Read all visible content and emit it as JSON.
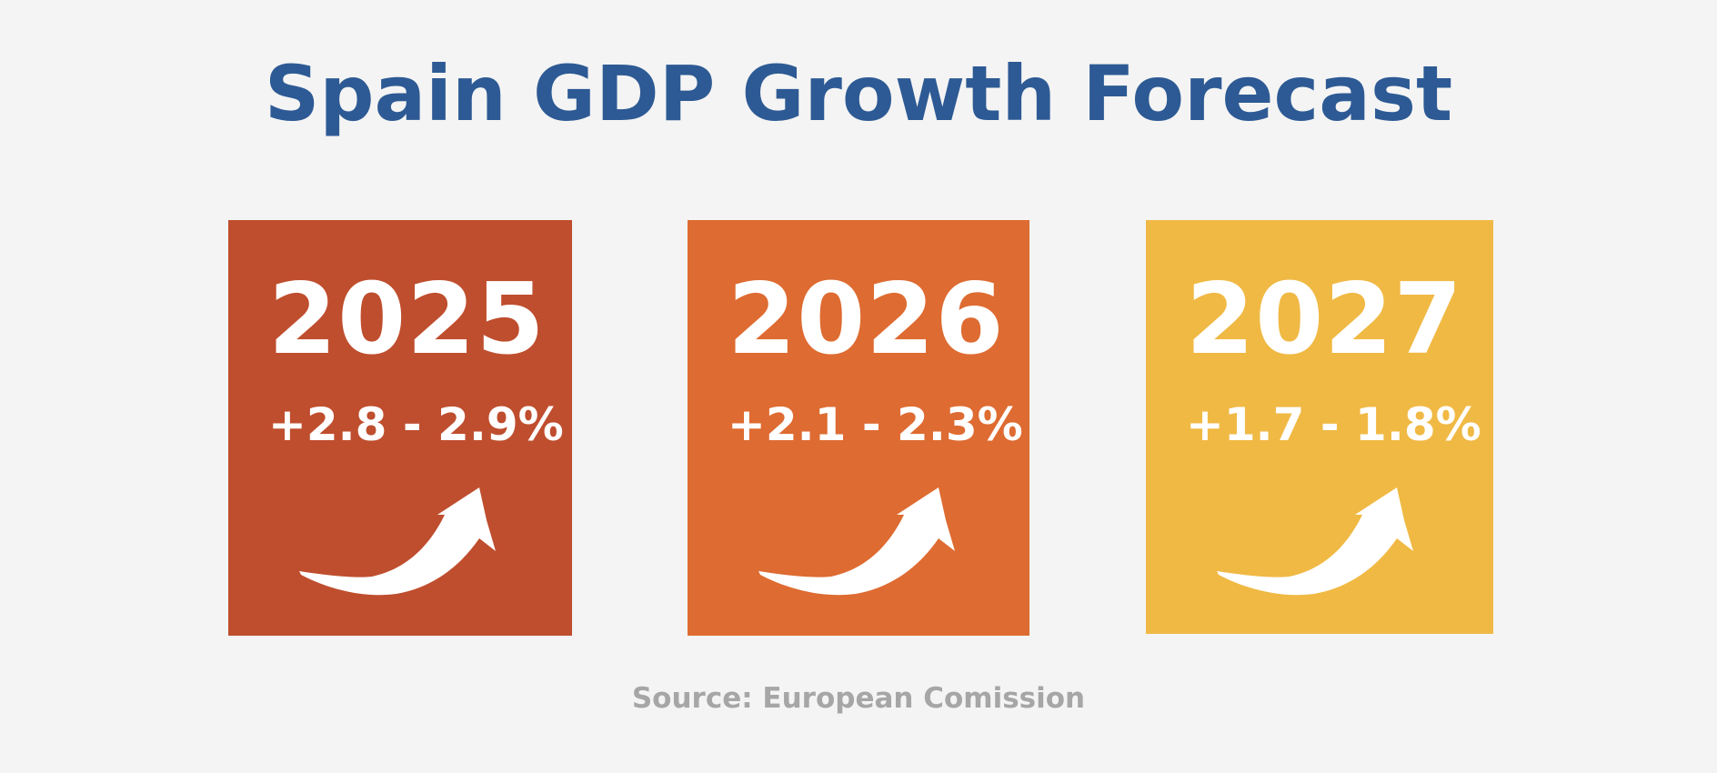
{
  "title": "Spain GDP Growth Forecast",
  "colors": {
    "background": "#f4f4f4",
    "title": "#2d5a94",
    "source": "#a6a6a6",
    "card_text": "#ffffff"
  },
  "cards": [
    {
      "year": "2025",
      "range": "+2.8 - 2.9%",
      "color": "#bf4e2e",
      "icon": "trend-up-arrow-icon"
    },
    {
      "year": "2026",
      "range": "+2.1 - 2.3%",
      "color": "#de6b31",
      "icon": "trend-up-arrow-icon"
    },
    {
      "year": "2027",
      "range": "+1.7 - 1.8%",
      "color": "#f0b944",
      "icon": "trend-up-arrow-icon"
    }
  ],
  "source": "Source: European Comission"
}
